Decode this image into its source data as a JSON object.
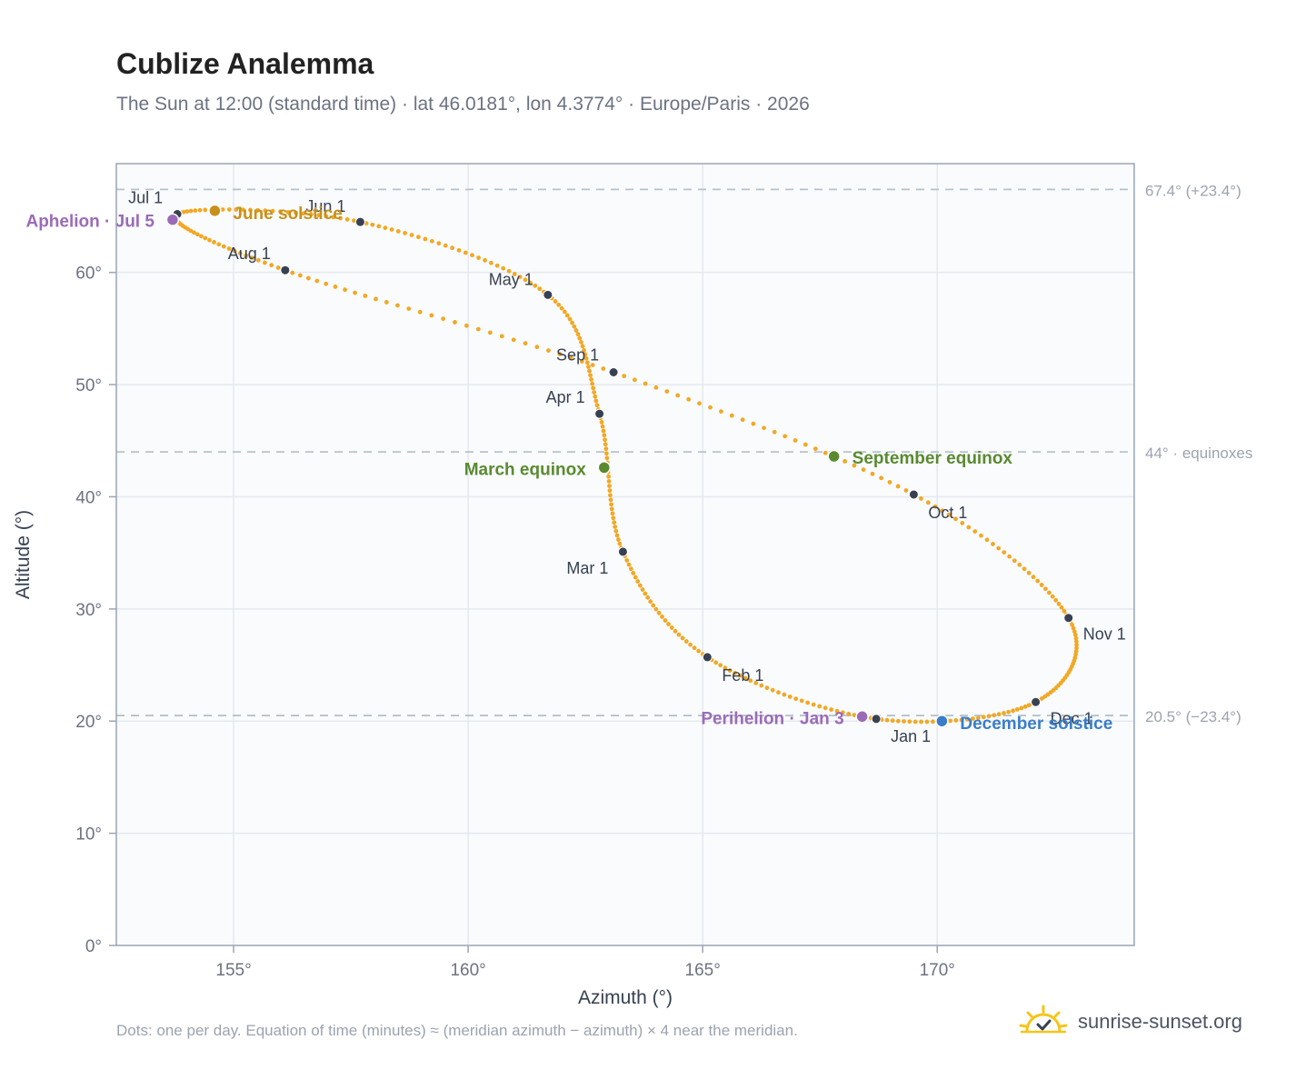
{
  "title": "Cublize Analemma",
  "subtitle": "The Sun at 12:00 (standard time) · lat 46.0181°, lon 4.3774° · Europe/Paris · 2026",
  "footnote": "Dots: one per day. Equation of time (minutes) ≈ (meridian azimuth − azimuth) × 4 near the meridian.",
  "brand": {
    "text": "sunrise-sunset.org",
    "icon": "sun-logo-icon"
  },
  "colors": {
    "curve": "#f2a825",
    "month_marker": "#374151",
    "solstice_june": "#c8901a",
    "solstice_december": "#3a7dc9",
    "equinox": "#5a8a30",
    "apsis": "#9b6bb8",
    "plot_bg": "#f9fbfd",
    "grid": "#e5e9ef",
    "refline": "#b8c2cc"
  },
  "chart_data": {
    "type": "scatter",
    "xlabel": "Azimuth (°)",
    "ylabel": "Altitude (°)",
    "xlim": [
      152.5,
      174.2
    ],
    "ylim": [
      0,
      69.7
    ],
    "xticks": [
      155,
      160,
      165,
      170
    ],
    "yticks": [
      0,
      10,
      20,
      30,
      40,
      50,
      60
    ],
    "grid": true,
    "series_note": "one dot per day",
    "month_markers": [
      {
        "label": "Jan 1",
        "x": 168.7,
        "y": 20.2
      },
      {
        "label": "Feb 1",
        "x": 165.1,
        "y": 25.7
      },
      {
        "label": "Mar 1",
        "x": 163.3,
        "y": 35.1
      },
      {
        "label": "Apr 1",
        "x": 162.8,
        "y": 47.4
      },
      {
        "label": "May 1",
        "x": 161.7,
        "y": 58.0
      },
      {
        "label": "Jun 1",
        "x": 157.7,
        "y": 64.5
      },
      {
        "label": "Jul 1",
        "x": 153.8,
        "y": 65.2
      },
      {
        "label": "Aug 1",
        "x": 156.1,
        "y": 60.2
      },
      {
        "label": "Sep 1",
        "x": 163.1,
        "y": 51.1
      },
      {
        "label": "Oct 1",
        "x": 169.5,
        "y": 40.2
      },
      {
        "label": "Nov 1",
        "x": 172.8,
        "y": 29.2
      },
      {
        "label": "Dec 1",
        "x": 172.1,
        "y": 21.7
      }
    ],
    "events": [
      {
        "label": "June solstice",
        "x": 154.6,
        "y": 65.5,
        "kind": "solstice_june"
      },
      {
        "label": "December solstice",
        "x": 170.1,
        "y": 20.0,
        "kind": "solstice_december"
      },
      {
        "label": "March equinox",
        "x": 162.9,
        "y": 42.6,
        "kind": "equinox"
      },
      {
        "label": "September equinox",
        "x": 167.8,
        "y": 43.6,
        "kind": "equinox"
      },
      {
        "label": "Aphelion · Jul 5",
        "x": 153.7,
        "y": 64.7,
        "kind": "apsis"
      },
      {
        "label": "Perihelion · Jan 3",
        "x": 168.4,
        "y": 20.4,
        "kind": "apsis"
      }
    ],
    "reference_lines": [
      {
        "y": 67.4,
        "label": "67.4° (+23.4°)"
      },
      {
        "y": 44.0,
        "label": "44° · equinoxes"
      },
      {
        "y": 20.5,
        "label": "20.5° (−23.4°)"
      }
    ]
  }
}
